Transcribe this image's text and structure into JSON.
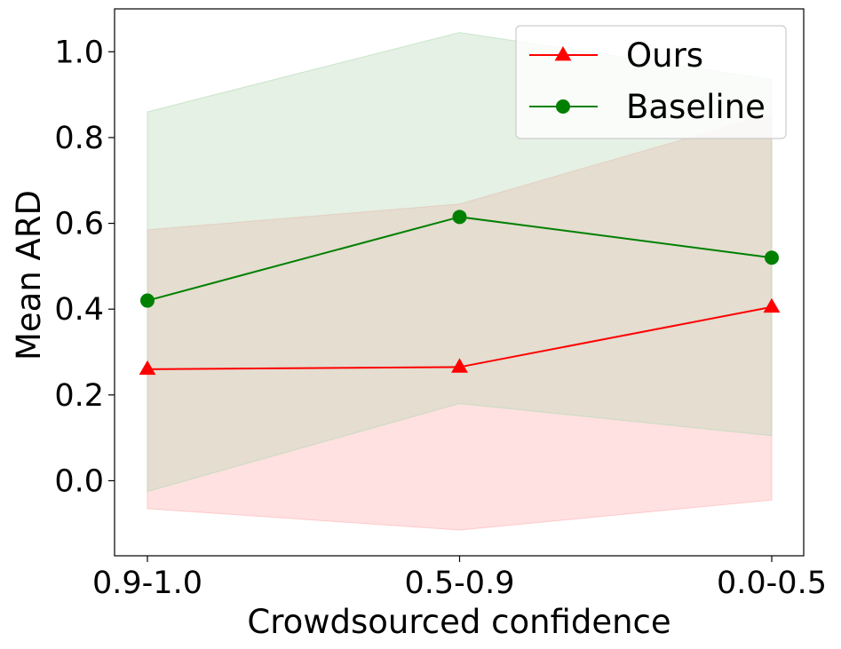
{
  "chart_data": {
    "type": "line",
    "title": "",
    "xlabel": "Crowdsourced confidence",
    "ylabel": "Mean ARD",
    "categories": [
      "0.9-1.0",
      "0.5-0.9",
      "0.0-0.5"
    ],
    "ylim": [
      -0.175,
      1.1
    ],
    "yticks": [
      0.0,
      0.2,
      0.4,
      0.6,
      0.8,
      1.0
    ],
    "ytick_labels": [
      "0.0",
      "0.2",
      "0.4",
      "0.6",
      "0.8",
      "1.0"
    ],
    "grid": false,
    "legend_position": "top-right",
    "series": [
      {
        "name": "Ours",
        "color": "#ff0000",
        "band_color": "#ffb3b3",
        "marker": "triangle",
        "values": [
          0.26,
          0.265,
          0.405
        ],
        "band_lower": [
          -0.065,
          -0.115,
          -0.045
        ],
        "band_upper": [
          0.585,
          0.645,
          0.855
        ]
      },
      {
        "name": "Baseline",
        "color": "#008000",
        "band_color": "#b2d8b2",
        "marker": "circle",
        "values": [
          0.42,
          0.615,
          0.52
        ],
        "band_lower": [
          -0.025,
          0.18,
          0.105
        ],
        "band_upper": [
          0.86,
          1.045,
          0.935
        ]
      }
    ]
  }
}
